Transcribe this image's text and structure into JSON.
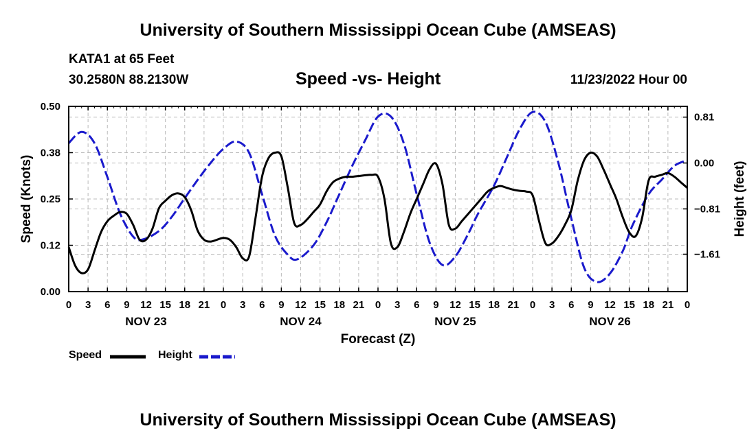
{
  "header": {
    "title": "University of Southern Mississippi Ocean Cube (AMSEAS)",
    "station": "KATA1 at 65 Feet",
    "coords": "30.2580N  88.2130W",
    "subtitle": "Speed -vs- Height",
    "datetime": "11/23/2022 Hour 00"
  },
  "footer": {
    "title": "University of Southern Mississippi Ocean Cube (AMSEAS)"
  },
  "legend": {
    "speed_label": "Speed",
    "height_label": "Height"
  },
  "colors": {
    "speed": "#000000",
    "height": "#1a1acc",
    "grid": "#bbbbbb"
  },
  "chart_data": {
    "type": "line",
    "title": "Speed -vs- Height",
    "xlabel": "Forecast (Z)",
    "ylabel": "Speed (Knots)",
    "y2label": "Height (feet)",
    "xlim": [
      0,
      96
    ],
    "ylim": [
      0,
      0.5
    ],
    "y2lim": [
      -2.27,
      1.0
    ],
    "x_ticks": [
      0,
      3,
      6,
      9,
      12,
      15,
      18,
      21,
      24,
      27,
      30,
      33,
      36,
      39,
      42,
      45,
      48,
      51,
      54,
      57,
      60,
      63,
      66,
      69,
      72,
      75,
      78,
      81,
      84,
      87,
      90,
      93,
      96
    ],
    "x_tick_labels": [
      "0",
      "3",
      "6",
      "9",
      "12",
      "15",
      "18",
      "21",
      "0",
      "3",
      "6",
      "9",
      "12",
      "15",
      "18",
      "21",
      "0",
      "3",
      "6",
      "9",
      "12",
      "15",
      "18",
      "21",
      "0",
      "3",
      "6",
      "9",
      "12",
      "15",
      "18",
      "21",
      "0"
    ],
    "day_labels": [
      {
        "x": 12,
        "label": "NOV 23"
      },
      {
        "x": 36,
        "label": "NOV 24"
      },
      {
        "x": 60,
        "label": "NOV 25"
      },
      {
        "x": 84,
        "label": "NOV 26"
      }
    ],
    "y_ticks": [
      0.0,
      0.125,
      0.25,
      0.375,
      0.5
    ],
    "y_tick_labels": [
      "0.00",
      "0.12",
      "0.25",
      "0.38",
      "0.50"
    ],
    "y2_ticks": [
      0.81,
      0.0,
      -0.81,
      -1.61
    ],
    "y2_tick_labels": [
      "0.81",
      "0.00",
      "−0.81",
      "−1.61"
    ],
    "series": [
      {
        "name": "Speed",
        "axis": "left",
        "style": "solid",
        "x": [
          0,
          1,
          2,
          3,
          4,
          5,
          6,
          7,
          8,
          9,
          10,
          11,
          12,
          13,
          14,
          15,
          16,
          17,
          18,
          19,
          20,
          21,
          22,
          23,
          24,
          25,
          26,
          27,
          28,
          29,
          30,
          31,
          32,
          33,
          34,
          35,
          36,
          37,
          38,
          39,
          40,
          41,
          42,
          43,
          44,
          45,
          46,
          47,
          48,
          49,
          50,
          51,
          52,
          53,
          54,
          55,
          56,
          57,
          58,
          59,
          60,
          61,
          62,
          63,
          64,
          65,
          66,
          67,
          68,
          69,
          70,
          71,
          72,
          73,
          74,
          75,
          76,
          77,
          78,
          79,
          80,
          81,
          82,
          83,
          84,
          85,
          86,
          87,
          88,
          89,
          90,
          91,
          92,
          93,
          94,
          95,
          96
        ],
        "values": [
          0.12,
          0.07,
          0.05,
          0.06,
          0.11,
          0.16,
          0.19,
          0.205,
          0.215,
          0.21,
          0.18,
          0.14,
          0.14,
          0.17,
          0.225,
          0.245,
          0.26,
          0.265,
          0.255,
          0.22,
          0.165,
          0.14,
          0.135,
          0.14,
          0.145,
          0.14,
          0.12,
          0.09,
          0.095,
          0.2,
          0.31,
          0.36,
          0.375,
          0.365,
          0.28,
          0.185,
          0.18,
          0.195,
          0.215,
          0.235,
          0.27,
          0.295,
          0.305,
          0.31,
          0.31,
          0.312,
          0.314,
          0.315,
          0.31,
          0.25,
          0.13,
          0.12,
          0.16,
          0.21,
          0.25,
          0.29,
          0.33,
          0.345,
          0.29,
          0.18,
          0.17,
          0.19,
          0.21,
          0.23,
          0.25,
          0.27,
          0.28,
          0.285,
          0.28,
          0.275,
          0.272,
          0.27,
          0.26,
          0.19,
          0.13,
          0.13,
          0.15,
          0.18,
          0.22,
          0.3,
          0.355,
          0.375,
          0.365,
          0.33,
          0.29,
          0.25,
          0.2,
          0.16,
          0.15,
          0.2,
          0.3,
          0.31,
          0.315,
          0.32,
          0.31,
          0.295,
          0.28
        ]
      },
      {
        "name": "Height",
        "axis": "right",
        "style": "dashed",
        "x": [
          0,
          2,
          4,
          6,
          8,
          10,
          11.5,
          14,
          16,
          18,
          20,
          22,
          24,
          26,
          28,
          30,
          32,
          34,
          35.5,
          38,
          40,
          42,
          44,
          46,
          48,
          50,
          52,
          54,
          56,
          58,
          60,
          62,
          63.5,
          66,
          68,
          70,
          72,
          74,
          76,
          78,
          80,
          82,
          84,
          86,
          87.5,
          90,
          92,
          94,
          96
        ],
        "values": [
          0.35,
          0.55,
          0.35,
          -0.25,
          -0.9,
          -1.3,
          -1.35,
          -1.2,
          -0.95,
          -0.62,
          -0.3,
          0.0,
          0.25,
          0.38,
          0.18,
          -0.55,
          -1.28,
          -1.62,
          -1.7,
          -1.45,
          -1.05,
          -0.55,
          -0.05,
          0.4,
          0.82,
          0.82,
          0.35,
          -0.55,
          -1.4,
          -1.8,
          -1.65,
          -1.25,
          -0.9,
          -0.4,
          0.1,
          0.6,
          0.9,
          0.72,
          0.0,
          -0.98,
          -1.85,
          -2.1,
          -1.95,
          -1.55,
          -1.1,
          -0.55,
          -0.3,
          -0.05,
          0.05
        ]
      }
    ]
  }
}
